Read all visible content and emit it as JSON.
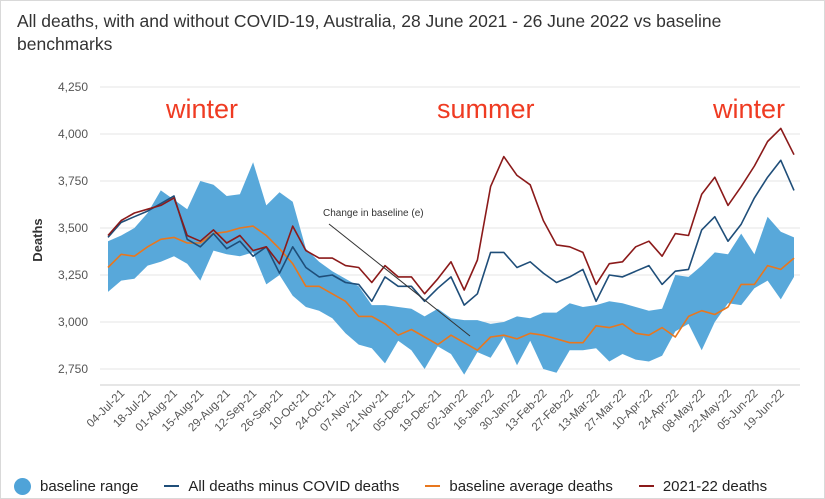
{
  "title": "All deaths, with and without COVID-19, Australia, 28 June 2021 - 26 June 2022 vs baseline benchmarks",
  "colors": {
    "baseline_range": "#4fa3d8",
    "all_minus_covid": "#1f4e79",
    "baseline_avg": "#e8771e",
    "deaths_2021_22": "#8b1a1a",
    "season_text": "#ef3b22",
    "grid": "#e6e6e6",
    "axis_text": "#555555",
    "annotation": "#333333"
  },
  "chart_data": {
    "type": "line",
    "title": "All deaths, with and without COVID-19, Australia, 28 June 2021 - 26 June 2022 vs baseline benchmarks",
    "xlabel": "",
    "ylabel": "Deaths",
    "ylim": [
      2650,
      4300
    ],
    "yticks": [
      2750,
      3000,
      3250,
      3500,
      3750,
      4000,
      4250
    ],
    "ytick_labels": [
      "2,750",
      "3,000",
      "3,250",
      "3,500",
      "3,750",
      "4,000",
      "4,250"
    ],
    "grid": "horizontal",
    "legend_position": "bottom",
    "x": [
      "28-Jun-21",
      "04-Jul-21",
      "11-Jul-21",
      "18-Jul-21",
      "25-Jul-21",
      "01-Aug-21",
      "08-Aug-21",
      "15-Aug-21",
      "22-Aug-21",
      "29-Aug-21",
      "05-Sep-21",
      "12-Sep-21",
      "19-Sep-21",
      "26-Sep-21",
      "03-Oct-21",
      "10-Oct-21",
      "17-Oct-21",
      "24-Oct-21",
      "31-Oct-21",
      "07-Nov-21",
      "14-Nov-21",
      "21-Nov-21",
      "28-Nov-21",
      "05-Dec-21",
      "12-Dec-21",
      "19-Dec-21",
      "26-Dec-21",
      "02-Jan-22",
      "09-Jan-22",
      "16-Jan-22",
      "23-Jan-22",
      "30-Jan-22",
      "06-Feb-22",
      "13-Feb-22",
      "20-Feb-22",
      "27-Feb-22",
      "06-Mar-22",
      "13-Mar-22",
      "20-Mar-22",
      "27-Mar-22",
      "03-Apr-22",
      "10-Apr-22",
      "17-Apr-22",
      "24-Apr-22",
      "01-May-22",
      "08-May-22",
      "15-May-22",
      "22-May-22",
      "29-May-22",
      "05-Jun-22",
      "12-Jun-22",
      "19-Jun-22",
      "26-Jun-22"
    ],
    "x_tick_labels": [
      "04-Jul-21",
      "18-Jul-21",
      "01-Aug-21",
      "15-Aug-21",
      "29-Aug-21",
      "12-Sep-21",
      "26-Sep-21",
      "10-Oct-21",
      "24-Oct-21",
      "07-Nov-21",
      "21-Nov-21",
      "05-Dec-21",
      "19-Dec-21",
      "02-Jan-22",
      "16-Jan-22",
      "30-Jan-22",
      "13-Feb-22",
      "27-Feb-22",
      "13-Mar-22",
      "27-Mar-22",
      "10-Apr-22",
      "24-Apr-22",
      "08-May-22",
      "22-May-22",
      "05-Jun-22",
      "19-Jun-22"
    ],
    "series": [
      {
        "name": "baseline range",
        "kind": "range",
        "upper": [
          3430,
          3460,
          3500,
          3580,
          3700,
          3650,
          3600,
          3750,
          3730,
          3670,
          3680,
          3850,
          3620,
          3690,
          3640,
          3390,
          3320,
          3270,
          3230,
          3190,
          3090,
          3090,
          3080,
          3070,
          3030,
          3070,
          3020,
          3010,
          3010,
          2990,
          3000,
          3030,
          3020,
          3050,
          3050,
          3100,
          3080,
          3090,
          3110,
          3100,
          3080,
          3060,
          3070,
          3250,
          3240,
          3300,
          3370,
          3360,
          3470,
          3360,
          3560,
          3480,
          3450
        ],
        "lower": [
          3160,
          3220,
          3230,
          3300,
          3320,
          3350,
          3310,
          3220,
          3380,
          3360,
          3350,
          3370,
          3200,
          3250,
          3140,
          3080,
          3060,
          3020,
          2940,
          2880,
          2860,
          2780,
          2900,
          2850,
          2750,
          2870,
          2830,
          2720,
          2840,
          2810,
          2920,
          2770,
          2900,
          2750,
          2730,
          2850,
          2850,
          2860,
          2790,
          2830,
          2800,
          2790,
          2820,
          2950,
          2990,
          2850,
          3000,
          3100,
          3090,
          3180,
          3220,
          3120,
          3240
        ]
      },
      {
        "name": "All deaths minus COVID deaths",
        "kind": "line",
        "values": [
          3450,
          3530,
          3560,
          3590,
          3630,
          3670,
          3440,
          3400,
          3470,
          3390,
          3430,
          3350,
          3400,
          3260,
          3400,
          3290,
          3240,
          3250,
          3210,
          3200,
          3110,
          3240,
          3190,
          3190,
          3110,
          3180,
          3240,
          3090,
          3150,
          3370,
          3370,
          3290,
          3320,
          3260,
          3210,
          3240,
          3280,
          3110,
          3250,
          3240,
          3270,
          3300,
          3200,
          3270,
          3280,
          3490,
          3560,
          3430,
          3520,
          3660,
          3770,
          3860,
          3700
        ]
      },
      {
        "name": "baseline average deaths",
        "kind": "line",
        "values": [
          3290,
          3360,
          3350,
          3400,
          3440,
          3450,
          3420,
          3420,
          3470,
          3480,
          3500,
          3510,
          3460,
          3390,
          3310,
          3190,
          3190,
          3150,
          3110,
          3030,
          3030,
          2990,
          2930,
          2960,
          2920,
          2880,
          2930,
          2890,
          2850,
          2920,
          2930,
          2910,
          2940,
          2930,
          2910,
          2890,
          2890,
          2980,
          2970,
          2990,
          2940,
          2930,
          2970,
          2920,
          3030,
          3060,
          3040,
          3080,
          3200,
          3200,
          3300,
          3280,
          3340
        ]
      },
      {
        "name": "2021-22 deaths",
        "kind": "line",
        "values": [
          3460,
          3540,
          3580,
          3600,
          3620,
          3660,
          3460,
          3430,
          3490,
          3420,
          3460,
          3380,
          3400,
          3310,
          3510,
          3380,
          3340,
          3340,
          3300,
          3290,
          3210,
          3300,
          3240,
          3240,
          3150,
          3230,
          3320,
          3170,
          3330,
          3720,
          3880,
          3780,
          3730,
          3540,
          3410,
          3400,
          3370,
          3200,
          3310,
          3320,
          3400,
          3430,
          3350,
          3470,
          3460,
          3680,
          3770,
          3620,
          3720,
          3830,
          3960,
          4030,
          3890
        ]
      }
    ],
    "annotations": {
      "change_baseline": "Change in baseline (e)",
      "seasons": [
        "winter",
        "summer",
        "winter"
      ]
    }
  },
  "legend": {
    "baseline_range": "baseline range",
    "all_minus_covid": "All deaths minus COVID deaths",
    "baseline_avg": "baseline average deaths",
    "deaths_2021_22": "2021-22 deaths"
  }
}
